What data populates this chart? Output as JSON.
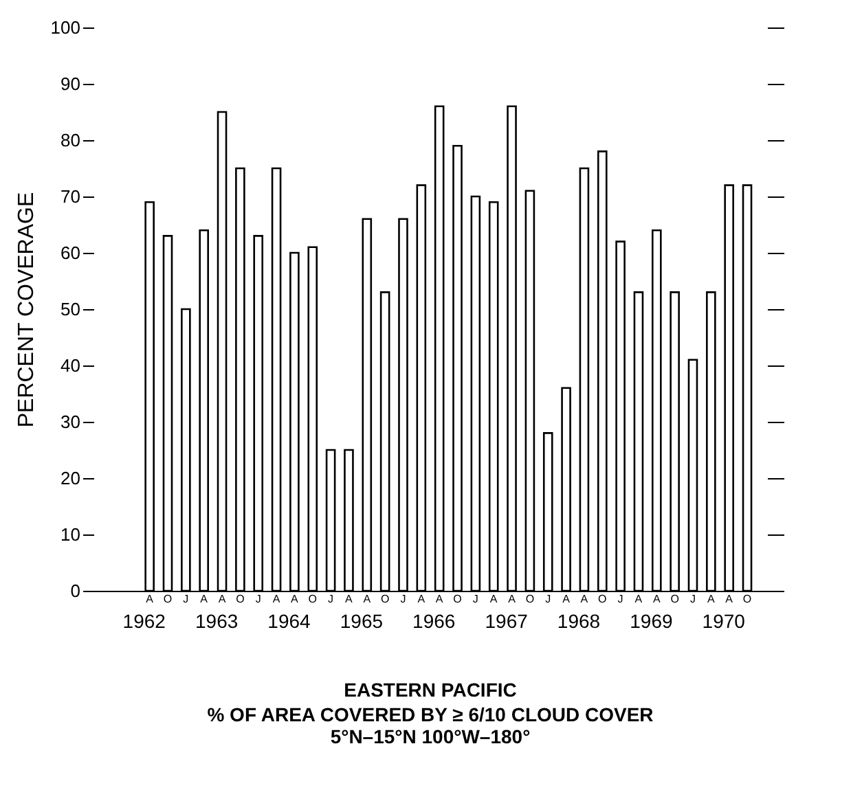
{
  "chart_data": {
    "type": "bar",
    "title": "EASTERN PACIFIC",
    "subtitle": "% OF AREA COVERED BY ≥ 6/10 CLOUD COVER\n5°N–15°N          100°W–180°",
    "ylabel": "PERCENT COVERAGE",
    "categories": [
      null,
      null,
      "A",
      "O",
      "J",
      "A",
      "A",
      "O",
      "J",
      "A",
      "A",
      "O",
      "J",
      "A",
      "A",
      "O",
      "J",
      "A",
      "A",
      "O",
      "J",
      "A",
      "A",
      "O",
      "J",
      "A",
      "A",
      "O",
      "J",
      "A",
      "A",
      "O",
      "J",
      "A",
      "A",
      "O"
    ],
    "values": [
      null,
      null,
      69,
      63,
      50,
      64,
      85,
      75,
      63,
      75,
      60,
      61,
      25,
      25,
      66,
      53,
      66,
      72,
      86,
      79,
      70,
      69,
      86,
      71,
      28,
      36,
      75,
      78,
      62,
      53,
      64,
      53,
      41,
      53,
      72,
      72
    ],
    "color": "#ffffff",
    "annotations": [
      "1962",
      "1963",
      "1964",
      "1965",
      "1966",
      "1967",
      "1968",
      "1969",
      "1970"
    ],
    "ylim": [
      0,
      100
    ],
    "yticks": [
      0,
      10,
      20,
      30,
      40,
      50,
      60,
      70,
      80,
      90,
      100
    ],
    "grid": false
  }
}
